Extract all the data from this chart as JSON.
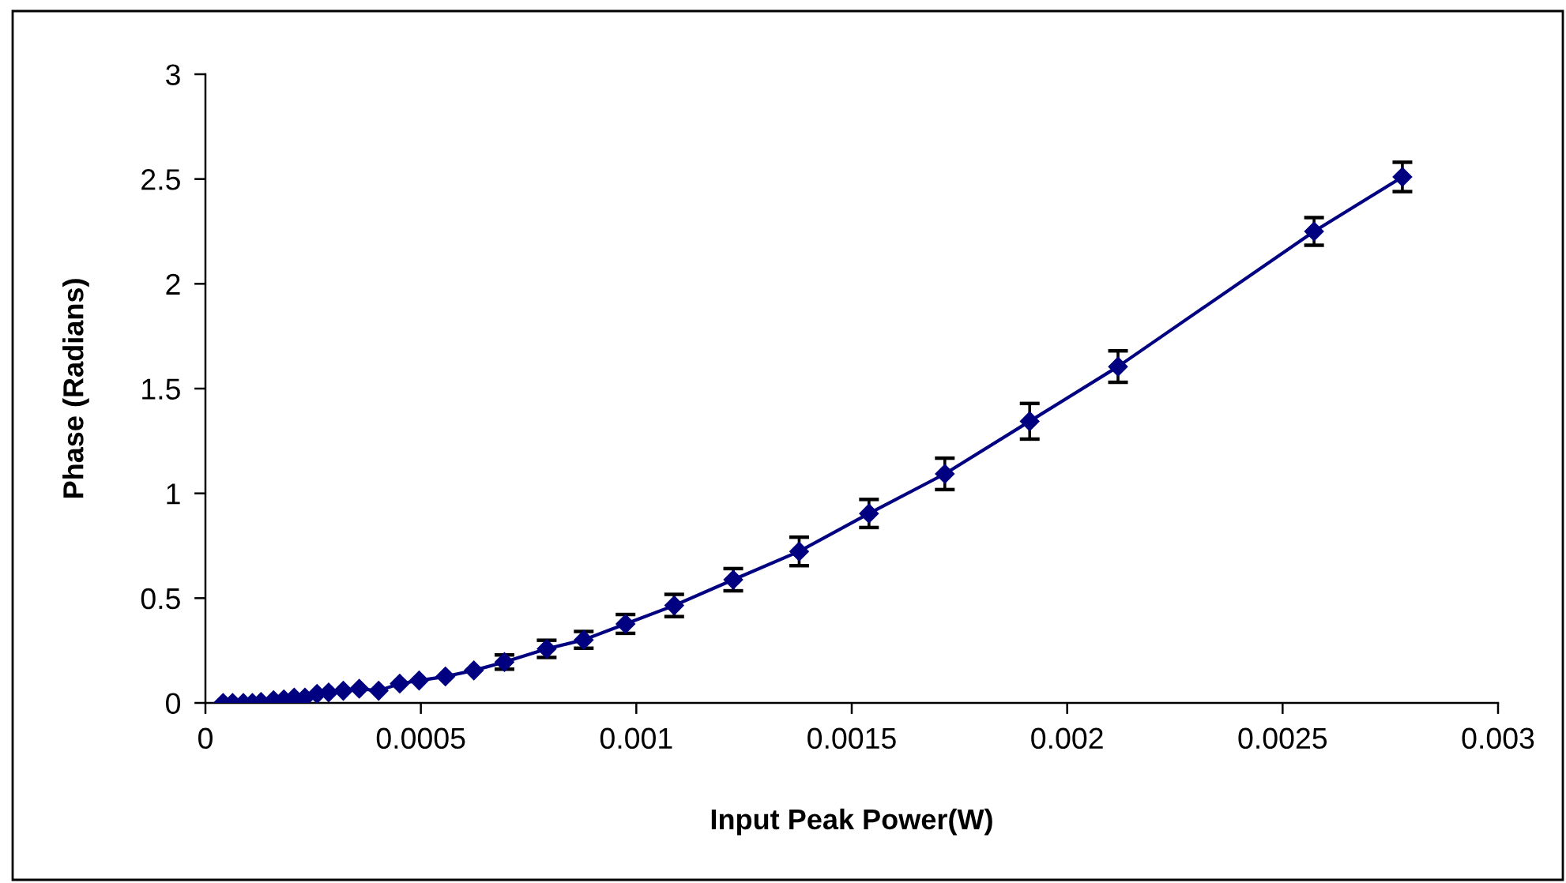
{
  "chart_data": {
    "type": "line",
    "xlabel": "Input Peak Power(W)",
    "ylabel": "Phase (Radians)",
    "x": [
      4.1e-05,
      6.3e-05,
      8.8e-05,
      0.000109,
      0.000129,
      0.000158,
      0.000182,
      0.000206,
      0.000231,
      0.000259,
      0.000286,
      0.00032,
      0.000357,
      0.000402,
      0.000451,
      0.000496,
      0.000557,
      0.000623,
      0.000694,
      0.000792,
      0.000878,
      0.000975,
      0.001088,
      0.001225,
      0.001378,
      0.00154,
      0.001716,
      0.001913,
      0.002118,
      0.002573,
      0.002778
    ],
    "series": [
      {
        "color": "#000080",
        "values": [
          0,
          0,
          0,
          0,
          0.005,
          0.013,
          0.017,
          0.025,
          0.025,
          0.043,
          0.05,
          0.058,
          0.068,
          0.058,
          0.092,
          0.107,
          0.126,
          0.155,
          0.195,
          0.258,
          0.301,
          0.377,
          0.465,
          0.588,
          0.723,
          0.904,
          1.093,
          1.344,
          1.605,
          2.25,
          2.51
        ],
        "errors": [
          null,
          null,
          null,
          null,
          null,
          null,
          null,
          null,
          null,
          null,
          null,
          null,
          null,
          null,
          null,
          null,
          null,
          null,
          0.034,
          0.041,
          0.04,
          0.045,
          0.053,
          0.053,
          0.068,
          0.067,
          0.075,
          0.085,
          0.075,
          0.066,
          0.07
        ]
      }
    ],
    "marker": "diamond",
    "line_style": "solid",
    "xlim": [
      0,
      0.003
    ],
    "xticks": [
      0,
      0.0005,
      0.001,
      0.0015,
      0.002,
      0.0025,
      0.003
    ],
    "ylim": [
      0,
      3
    ],
    "yticks": [
      0,
      0.5,
      1,
      1.5,
      2,
      2.5,
      3
    ]
  }
}
